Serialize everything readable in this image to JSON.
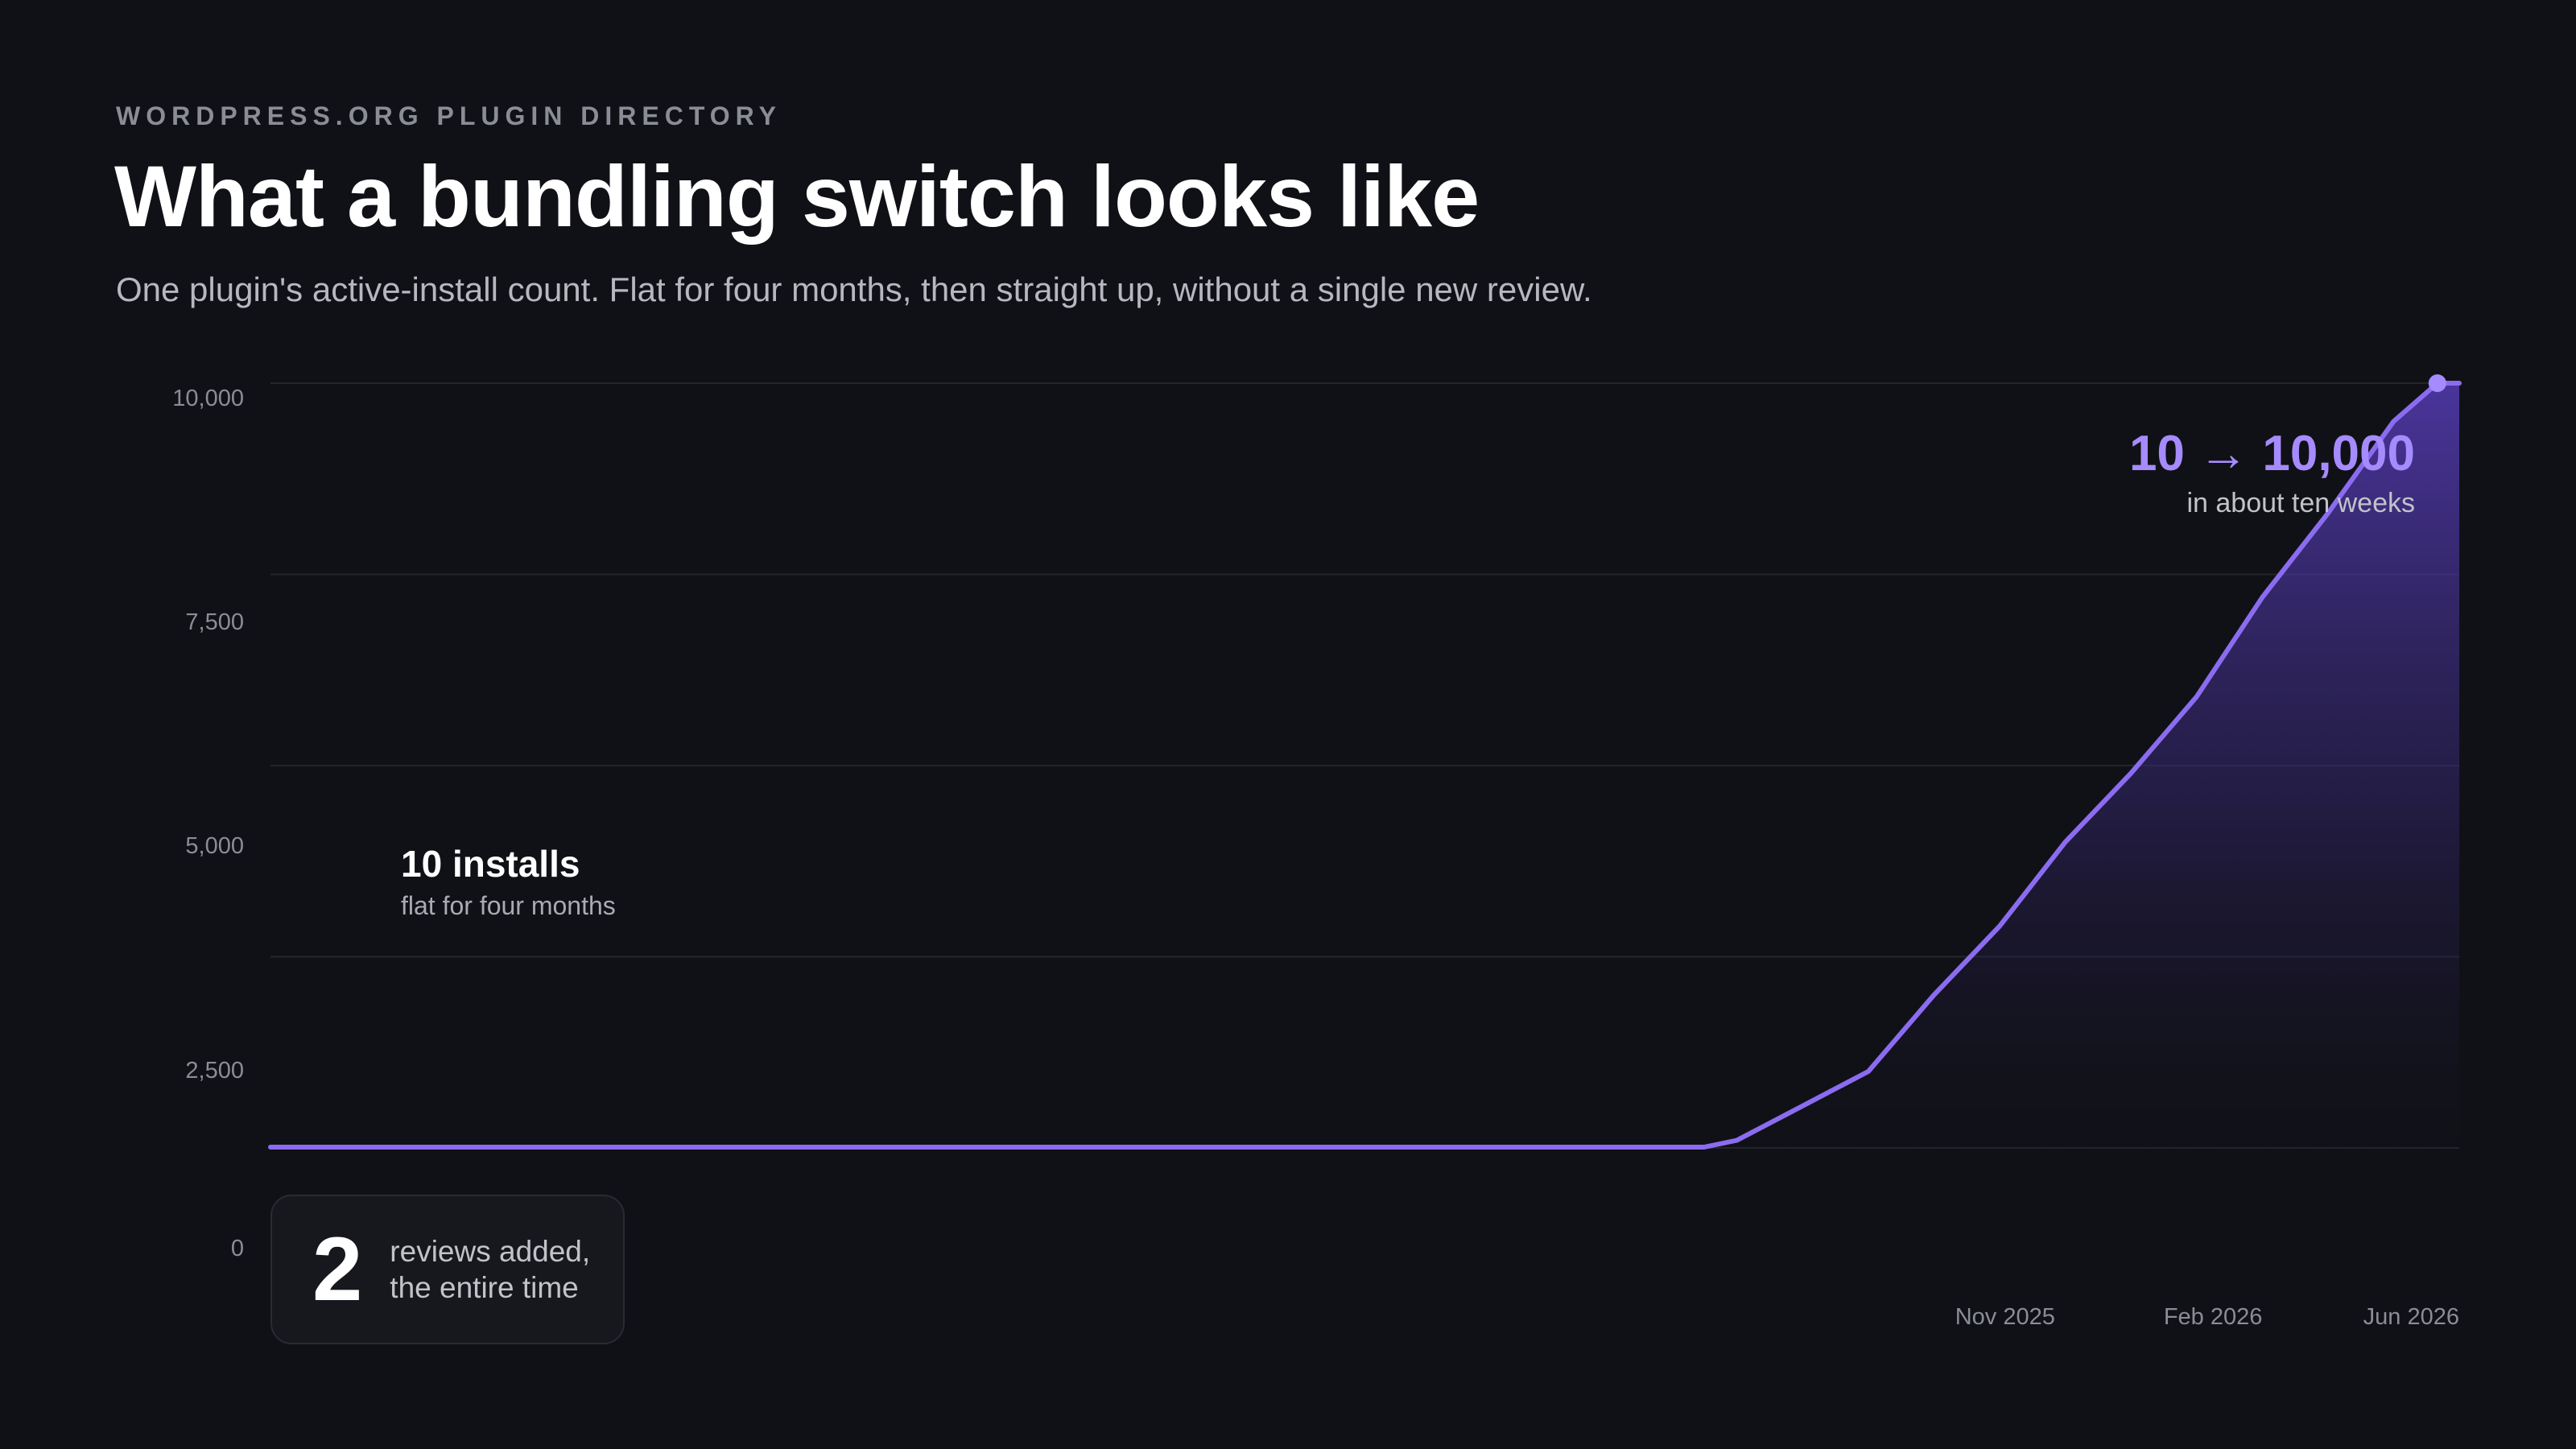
{
  "header": {
    "eyebrow": "WORDPRESS.ORG PLUGIN DIRECTORY",
    "title": "What a bundling switch looks like",
    "subtitle": "One plugin's active-install count. Flat for four months, then straight up, without a single new review."
  },
  "annotations": {
    "flat_title": "10 installs",
    "flat_sub": "flat for four months",
    "growth_title": "10 → 10,000",
    "growth_sub": "in about ten weeks"
  },
  "reviews": {
    "count": "2",
    "line1": "reviews added,",
    "line2": "the entire time"
  },
  "colors": {
    "background": "#101116",
    "line": "#8b6cf0",
    "fill_top": "#5a3fc0",
    "gridline": "#24252c",
    "accent_text": "#a68bff"
  },
  "chart_data": {
    "type": "area",
    "title": "What a bundling switch looks like",
    "xlabel": "",
    "ylabel": "",
    "ylim": [
      0,
      10000
    ],
    "yticks": [
      0,
      2500,
      5000,
      7500,
      10000
    ],
    "ytick_labels": [
      "0",
      "2,500",
      "5,000",
      "7,500",
      "10,000"
    ],
    "xticks": [
      {
        "label": "Nov 2025",
        "x": 0.7925
      },
      {
        "label": "Feb 2026",
        "x": 0.8875
      },
      {
        "label": "Jun 2026",
        "x": 1.0
      }
    ],
    "grid": true,
    "series": [
      {
        "x": [
          0,
          0.655,
          0.67,
          0.7,
          0.73,
          0.76,
          0.79,
          0.82,
          0.85,
          0.88,
          0.91,
          0.94,
          0.97,
          0.99,
          1.0
        ],
        "y": [
          10,
          10,
          100,
          550,
          1000,
          2000,
          2900,
          4000,
          4900,
          5900,
          7200,
          8300,
          9500,
          10000,
          10000
        ]
      }
    ]
  }
}
